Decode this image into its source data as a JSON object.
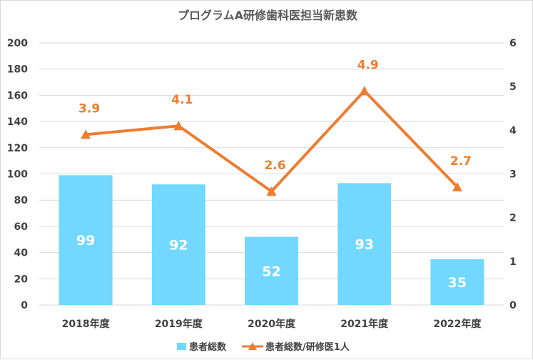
{
  "chart_data": {
    "type": "bar",
    "title": "プログラムA研修歯科医担当新患数",
    "categories": [
      "2018年度",
      "2019年度",
      "2020年度",
      "2021年度",
      "2022年度"
    ],
    "series": [
      {
        "name": "患者総数",
        "type": "bar",
        "axis": "left",
        "values": [
          99,
          92,
          52,
          93,
          35
        ],
        "color": "#72d8ff"
      },
      {
        "name": "患者総数/研修医1人",
        "type": "line",
        "axis": "right",
        "values": [
          3.9,
          4.1,
          2.6,
          4.9,
          2.7
        ],
        "color": "#ed7d31"
      }
    ],
    "y_left": {
      "range": [
        0,
        200
      ],
      "ticks": [
        "0",
        "20",
        "40",
        "60",
        "80",
        "100",
        "120",
        "140",
        "160",
        "180",
        "200"
      ]
    },
    "y_right": {
      "range": [
        0,
        6
      ],
      "ticks": [
        "0",
        "1",
        "2",
        "3",
        "4",
        "5",
        "6"
      ]
    },
    "grid": true,
    "legend_position": "bottom"
  }
}
